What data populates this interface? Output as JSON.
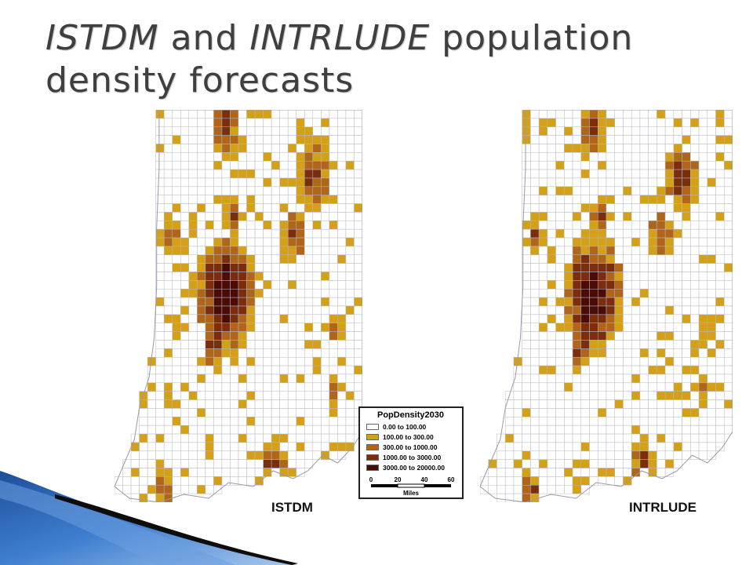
{
  "slide": {
    "title_part1": "ISTDM",
    "title_part2": " and ",
    "title_part3": "INTRLUDE",
    "title_part4": " population density forecasts"
  },
  "maps": [
    {
      "caption": "ISTDM"
    },
    {
      "caption": "INTRLUDE"
    }
  ],
  "legend": {
    "title": "PopDensity2030",
    "classes": [
      {
        "label": "0.00 to 100.00",
        "color": "#ffffff"
      },
      {
        "label": "100.00 to 300.00",
        "color": "#d4a017"
      },
      {
        "label": "300.00 to 1000.00",
        "color": "#b0661a"
      },
      {
        "label": "1000.00 to 3000.00",
        "color": "#7a2e0e"
      },
      {
        "label": "3000.00 to 20000.00",
        "color": "#4a0c05"
      }
    ],
    "scale_ticks": [
      "0",
      "20",
      "40",
      "60"
    ],
    "scale_unit": "Miles"
  },
  "colors": {
    "boundary": "#b8b8c4",
    "title": "#3f3f3f",
    "accent_blue": "#2d6bb8"
  }
}
